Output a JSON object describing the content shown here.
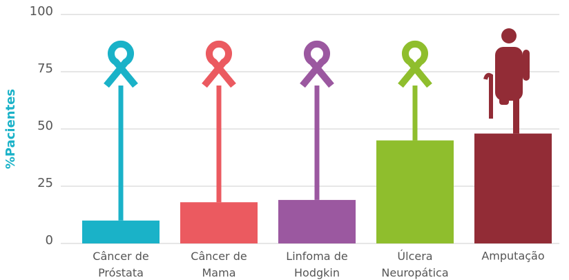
{
  "chart_data": {
    "type": "bar",
    "ylabel": "%Pacientes",
    "categories": [
      "Câncer de Próstata",
      "Câncer de Mama",
      "Linfoma de Hodgkin",
      "Úlcera Neuropática",
      "Amputação"
    ],
    "values": [
      10,
      18,
      19,
      45,
      48
    ],
    "colors": [
      "#1ab2c8",
      "#eb5a60",
      "#9b58a0",
      "#8fbe2d",
      "#922c36"
    ],
    "ylim": [
      0,
      100
    ],
    "yticks": [
      0,
      25,
      50,
      75,
      100
    ],
    "grid": true
  }
}
